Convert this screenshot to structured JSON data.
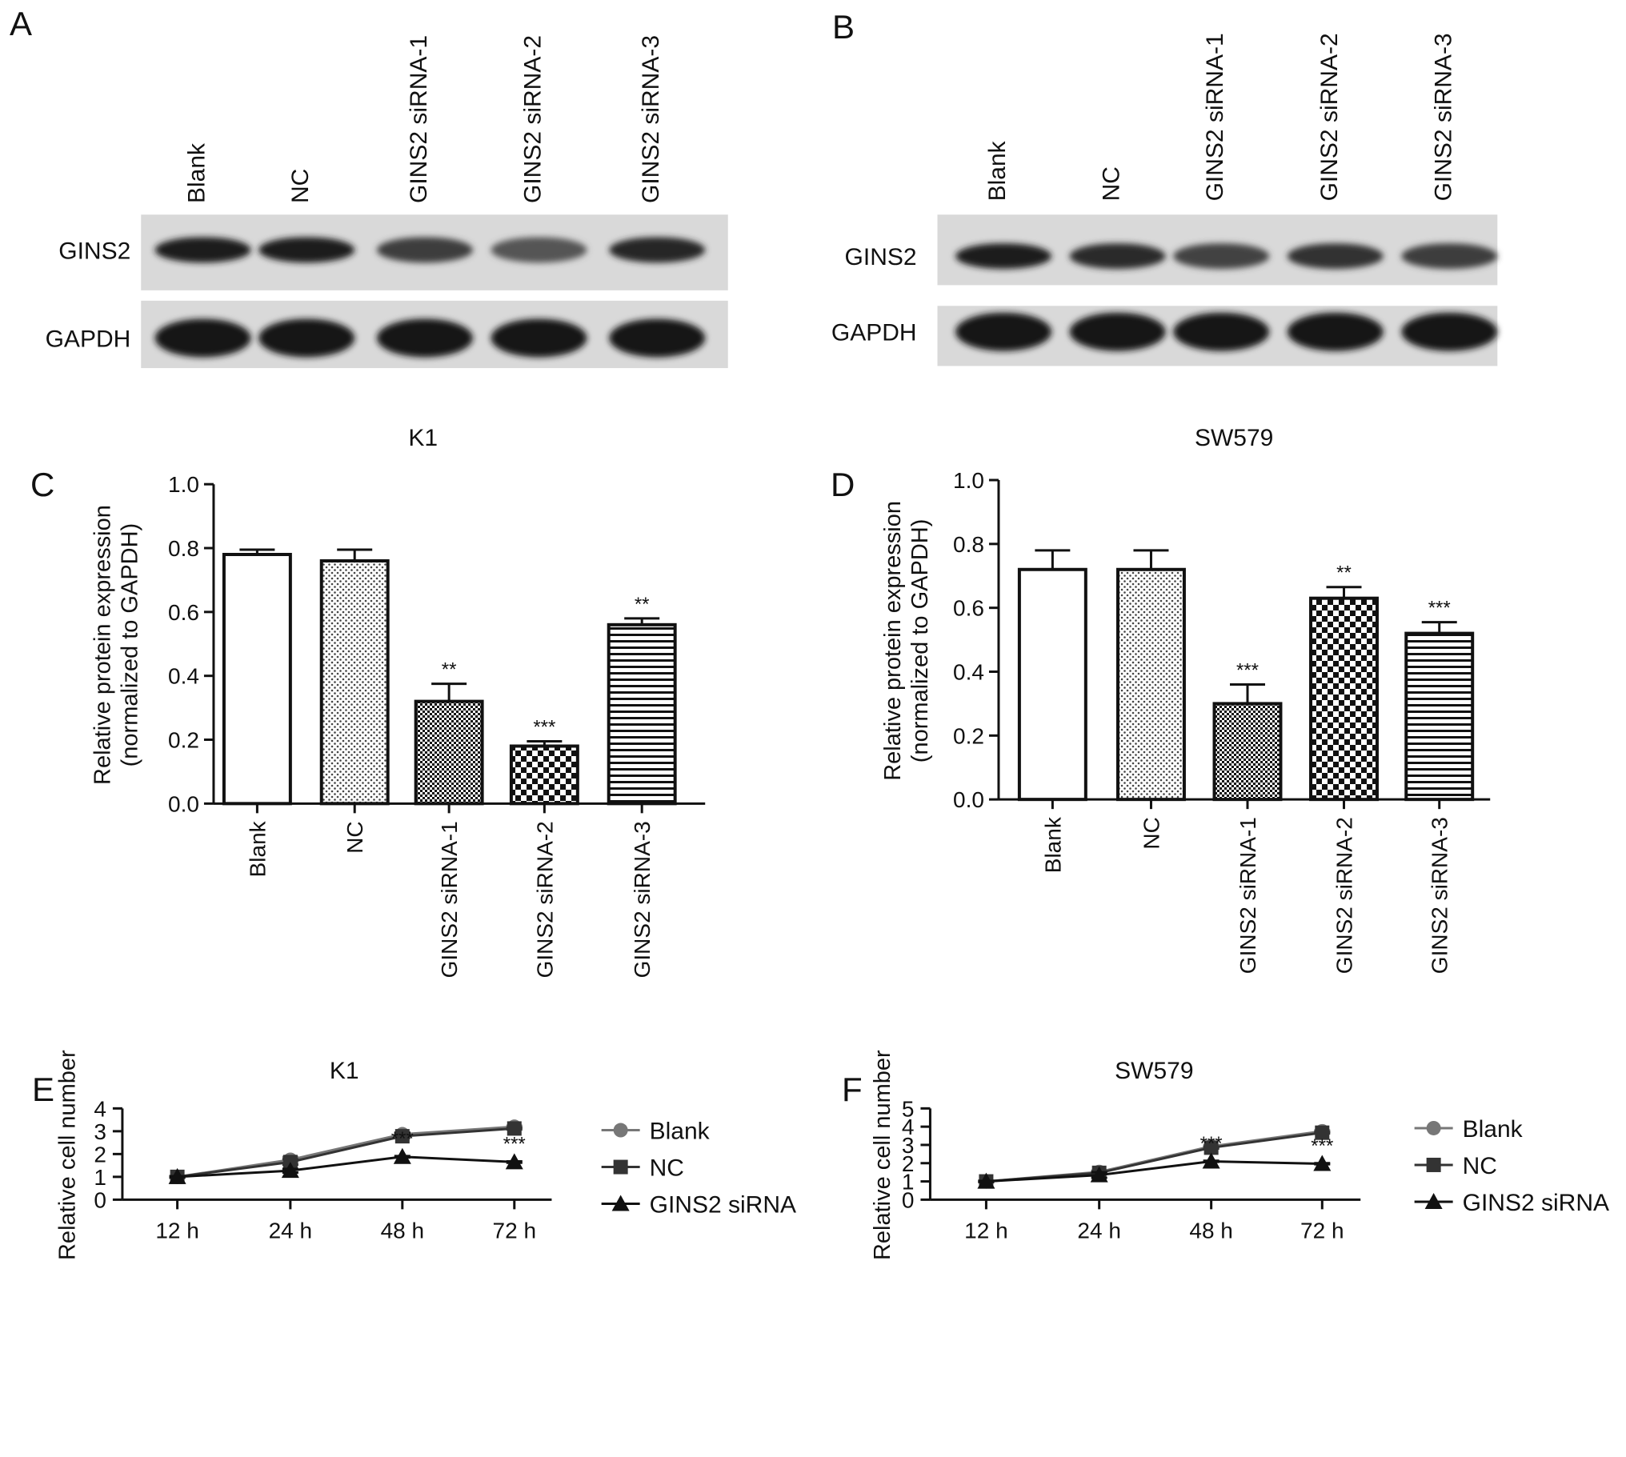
{
  "panels": {
    "A": "A",
    "B": "B",
    "C": "C",
    "D": "D",
    "E": "E",
    "F": "F"
  },
  "blots": [
    {
      "id": "A",
      "lanes": [
        "Blank",
        "NC",
        "GINS2 siRNA-1",
        "GINS2 siRNA-2",
        "GINS2 siRNA-3"
      ],
      "rows": [
        {
          "label": "GINS2",
          "band_intensity": [
            0.95,
            0.95,
            0.7,
            0.5,
            0.9
          ]
        },
        {
          "label": "GAPDH",
          "band_intensity": [
            1,
            1,
            1,
            1,
            1
          ]
        }
      ]
    },
    {
      "id": "B",
      "lanes": [
        "Blank",
        "NC",
        "GINS2 siRNA-1",
        "GINS2 siRNA-2",
        "GINS2 siRNA-3"
      ],
      "rows": [
        {
          "label": "GINS2",
          "band_intensity": [
            0.95,
            0.85,
            0.65,
            0.8,
            0.7
          ]
        },
        {
          "label": "GAPDH",
          "band_intensity": [
            1,
            1,
            1,
            1,
            1
          ]
        }
      ]
    }
  ],
  "chart_data": [
    {
      "id": "C",
      "type": "bar",
      "title": "K1",
      "ylabel_lines": [
        "Relative protein expression",
        "(normalized to GAPDH)"
      ],
      "categories": [
        "Blank",
        "NC",
        "GINS2 siRNA-1",
        "GINS2 siRNA-2",
        "GINS2 siRNA-3"
      ],
      "values": [
        0.78,
        0.76,
        0.32,
        0.18,
        0.56
      ],
      "errors": [
        0.015,
        0.035,
        0.055,
        0.015,
        0.02
      ],
      "significance": [
        "",
        "",
        "**",
        "***",
        "**"
      ],
      "patterns": [
        "blank",
        "dots",
        "fine-check",
        "checker",
        "hstripes"
      ],
      "ylim": [
        0,
        1.0
      ],
      "yticks": [
        "0.0",
        "0.2",
        "0.4",
        "0.6",
        "0.8",
        "1.0"
      ]
    },
    {
      "id": "D",
      "type": "bar",
      "title": "SW579",
      "ylabel_lines": [
        "Relative protein expression",
        "(normalized to GAPDH)"
      ],
      "categories": [
        "Blank",
        "NC",
        "GINS2 siRNA-1",
        "GINS2 siRNA-2",
        "GINS2 siRNA-3"
      ],
      "values": [
        0.72,
        0.72,
        0.3,
        0.63,
        0.52
      ],
      "errors": [
        0.06,
        0.06,
        0.06,
        0.035,
        0.035
      ],
      "significance": [
        "",
        "",
        "***",
        "**",
        "***"
      ],
      "patterns": [
        "blank",
        "dots",
        "fine-check",
        "checker",
        "hstripes"
      ],
      "ylim": [
        0,
        1.0
      ],
      "yticks": [
        "0.0",
        "0.2",
        "0.4",
        "0.6",
        "0.8",
        "1.0"
      ]
    },
    {
      "id": "E",
      "type": "line",
      "title": "K1",
      "ylabel": "Relative cell number",
      "categories": [
        "12 h",
        "24 h",
        "48 h",
        "72 h"
      ],
      "ylim": [
        0,
        4
      ],
      "yticks": [
        "0",
        "1",
        "2",
        "3",
        "4"
      ],
      "series": [
        {
          "name": "Blank",
          "marker": "circle",
          "color": "#777777",
          "values": [
            1.0,
            1.75,
            2.87,
            3.2
          ],
          "errors": [
            0.03,
            0.12,
            0.07,
            0.04
          ]
        },
        {
          "name": "NC",
          "marker": "square",
          "color": "#333333",
          "values": [
            1.0,
            1.65,
            2.78,
            3.12
          ],
          "errors": [
            0.03,
            0.12,
            0.07,
            0.04
          ]
        },
        {
          "name": "GINS2 siRNA",
          "marker": "triangle",
          "color": "#111111",
          "values": [
            1.0,
            1.27,
            1.88,
            1.65
          ],
          "errors": [
            0.03,
            0.08,
            0.03,
            0.03
          ]
        }
      ],
      "significance": [
        "",
        "",
        "***",
        "***"
      ]
    },
    {
      "id": "F",
      "type": "line",
      "title": "SW579",
      "ylabel": "Relative cell number",
      "categories": [
        "12 h",
        "24 h",
        "48 h",
        "72 h"
      ],
      "ylim": [
        0,
        5
      ],
      "yticks": [
        "0",
        "1",
        "2",
        "3",
        "4",
        "5"
      ],
      "series": [
        {
          "name": "Blank",
          "marker": "circle",
          "color": "#777777",
          "values": [
            1.0,
            1.52,
            2.92,
            3.75
          ],
          "errors": [
            0.03,
            0.07,
            0.05,
            0.04
          ]
        },
        {
          "name": "NC",
          "marker": "square",
          "color": "#333333",
          "values": [
            1.0,
            1.47,
            2.85,
            3.67
          ],
          "errors": [
            0.03,
            0.07,
            0.05,
            0.04
          ]
        },
        {
          "name": "GINS2 siRNA",
          "marker": "triangle",
          "color": "#111111",
          "values": [
            1.0,
            1.35,
            2.1,
            1.97
          ],
          "errors": [
            0.03,
            0.15,
            0.03,
            0.03
          ]
        }
      ],
      "significance": [
        "",
        "",
        "***",
        "***"
      ]
    }
  ]
}
